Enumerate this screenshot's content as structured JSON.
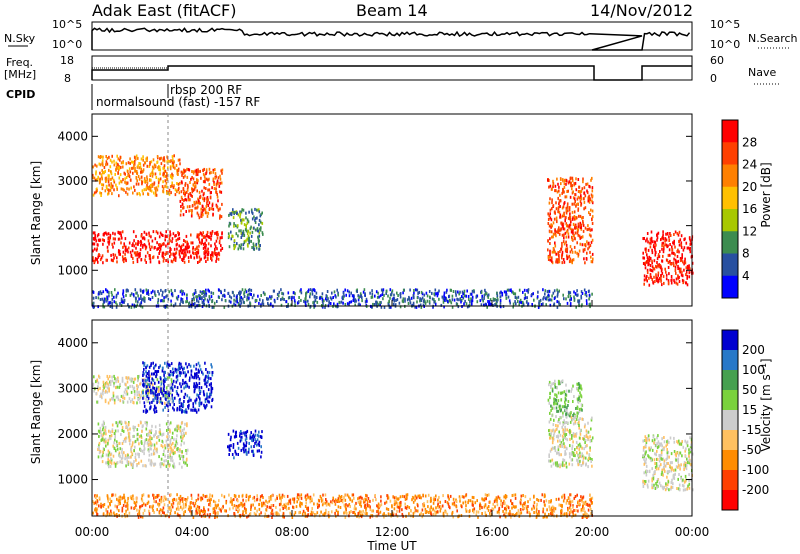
{
  "header": {
    "station": "Adak East (fitACF)",
    "beam": "Beam 14",
    "date": "14/Nov/2012"
  },
  "labels": {
    "nsky": "N.Sky",
    "nsky_top": "10^5",
    "nsky_bottom": "10^0",
    "nsearch": "N.Search",
    "nsearch_top": "10^5",
    "nsearch_bottom": "10^0",
    "freq": "Freq.",
    "freq_unit": "[MHz]",
    "freq_top": "18",
    "freq_bottom": "8",
    "nave": "Nave",
    "nave_top": "60",
    "nave_bottom": "0",
    "cpid": "CPID",
    "cpid_1": "normalsound (fast) -157 RF",
    "cpid_2": "rbsp 200 RF",
    "xlabel": "Time UT",
    "ylabel": "Slant Range [km]",
    "power_label": "Power [dB]",
    "velocity_label": "Velocity [m s⁻¹]"
  },
  "chart_data": {
    "type": "heatmap",
    "x_ticks": [
      "00:00",
      "04:00",
      "08:00",
      "12:00",
      "16:00",
      "20:00",
      "00:00"
    ],
    "x_range_hours": [
      0,
      24
    ],
    "y_ticks": [
      1000,
      2000,
      3000,
      4000
    ],
    "y_range_km": [
      200,
      4500
    ],
    "power": {
      "colorbar_ticks": [
        "28",
        "24",
        "20",
        "16",
        "12",
        "8",
        "4"
      ],
      "colors": [
        "#ff0000",
        "#ff4000",
        "#ff8000",
        "#ffc000",
        "#a8c800",
        "#3c8c50",
        "#2850a0",
        "#0000ff"
      ],
      "regions": [
        {
          "t0": 0.0,
          "t1": 5.2,
          "r0": 1200,
          "r1": 1900,
          "level": 0
        },
        {
          "t0": 0.0,
          "t1": 3.5,
          "r0": 2700,
          "r1": 3600,
          "level": 2
        },
        {
          "t0": 3.5,
          "t1": 5.2,
          "r0": 2200,
          "r1": 3300,
          "level": 1
        },
        {
          "t0": 5.4,
          "t1": 6.8,
          "r0": 1500,
          "r1": 2400,
          "level": 5
        },
        {
          "t0": 18.2,
          "t1": 20.0,
          "r0": 1200,
          "r1": 3100,
          "level": 1
        },
        {
          "t0": 22.0,
          "t1": 24.0,
          "r0": 700,
          "r1": 1900,
          "level": 0
        },
        {
          "t0": 0.0,
          "t1": 20.0,
          "r0": 200,
          "r1": 600,
          "level": 6
        }
      ]
    },
    "velocity": {
      "colorbar_ticks": [
        "200",
        "100",
        "50",
        "15",
        "-15",
        "-50",
        "-100",
        "-200"
      ],
      "colors": [
        "#0000d0",
        "#2878c8",
        "#46a050",
        "#7ad23c",
        "#cccccc",
        "#ffc060",
        "#ff8c00",
        "#ff4000",
        "#ff0000"
      ],
      "regions": [
        {
          "t0": 0.0,
          "t1": 3.2,
          "r0": 2700,
          "r1": 3300,
          "level": 4
        },
        {
          "t0": 0.2,
          "t1": 3.8,
          "r0": 1300,
          "r1": 2300,
          "level": 4
        },
        {
          "t0": 2.0,
          "t1": 4.8,
          "r0": 2500,
          "r1": 3600,
          "level": 0
        },
        {
          "t0": 5.4,
          "t1": 6.8,
          "r0": 1500,
          "r1": 2100,
          "level": 0
        },
        {
          "t0": 18.2,
          "t1": 20.0,
          "r0": 1300,
          "r1": 2400,
          "level": 4
        },
        {
          "t0": 18.2,
          "t1": 19.6,
          "r0": 2400,
          "r1": 3200,
          "level": 3
        },
        {
          "t0": 22.0,
          "t1": 24.0,
          "r0": 800,
          "r1": 2000,
          "level": 4
        },
        {
          "t0": 0.0,
          "t1": 20.0,
          "r0": 200,
          "r1": 700,
          "level": 6
        }
      ]
    }
  },
  "colors": {
    "axis": "#000000",
    "dotted_line": "#000000"
  }
}
